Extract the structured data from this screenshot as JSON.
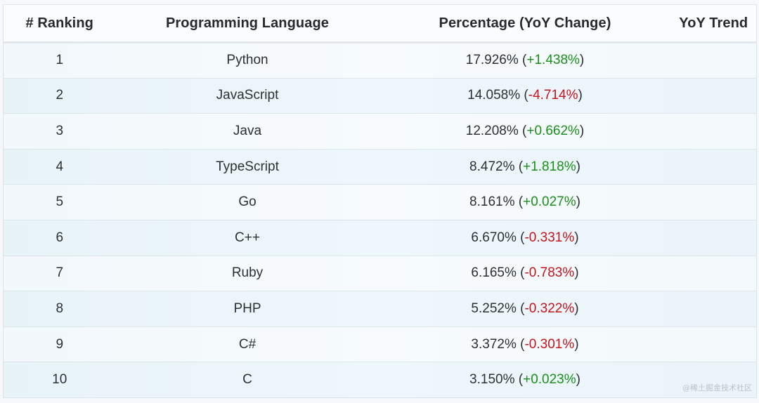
{
  "table": {
    "headers": {
      "rank": "# Ranking",
      "language": "Programming Language",
      "percentage": "Percentage (YoY Change)",
      "trend": "YoY Trend"
    },
    "rows": [
      {
        "rank": "1",
        "language": "Python",
        "percent": "17.926%",
        "change": "+1.438%",
        "direction": "up"
      },
      {
        "rank": "2",
        "language": "JavaScript",
        "percent": "14.058%",
        "change": "-4.714%",
        "direction": "down"
      },
      {
        "rank": "3",
        "language": "Java",
        "percent": "12.208%",
        "change": "+0.662%",
        "direction": "up"
      },
      {
        "rank": "4",
        "language": "TypeScript",
        "percent": "8.472%",
        "change": "+1.818%",
        "direction": "up"
      },
      {
        "rank": "5",
        "language": "Go",
        "percent": "8.161%",
        "change": "+0.027%",
        "direction": "up"
      },
      {
        "rank": "6",
        "language": "C++",
        "percent": "6.670%",
        "change": "-0.331%",
        "direction": "down"
      },
      {
        "rank": "7",
        "language": "Ruby",
        "percent": "6.165%",
        "change": "-0.783%",
        "direction": "down"
      },
      {
        "rank": "8",
        "language": "PHP",
        "percent": "5.252%",
        "change": "-0.322%",
        "direction": "down"
      },
      {
        "rank": "9",
        "language": "C#",
        "percent": "3.372%",
        "change": "-0.301%",
        "direction": "down"
      },
      {
        "rank": "10",
        "language": "C",
        "percent": "3.150%",
        "change": "+0.023%",
        "direction": "up"
      }
    ]
  },
  "colors": {
    "positive": "#1a8f1a",
    "negative": "#c3141c"
  },
  "watermark": "@稀土掘金技术社区"
}
